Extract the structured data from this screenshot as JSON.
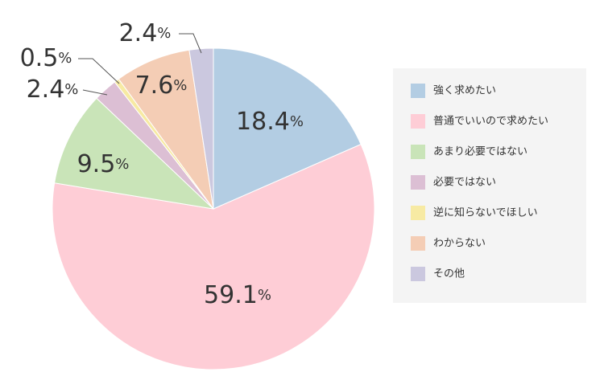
{
  "chart_data": {
    "type": "pie",
    "categories": [
      "強く求めたい",
      "普通でいいので求めたい",
      "あまり必要ではない",
      "必要ではない",
      "逆に知らないでほしい",
      "わからない",
      "その他"
    ],
    "values": [
      18.4,
      59.1,
      9.5,
      2.4,
      0.5,
      7.6,
      2.4
    ],
    "value_labels": [
      "18.4%",
      "59.1%",
      "9.5%",
      "2.4%",
      "0.5%",
      "7.6%",
      "2.4%"
    ],
    "colors": [
      "#b3cde3",
      "#fecdd6",
      "#c9e4b8",
      "#dcbfd4",
      "#f7eaa3",
      "#f4cdb5",
      "#cbc8df"
    ],
    "legend": "right"
  }
}
